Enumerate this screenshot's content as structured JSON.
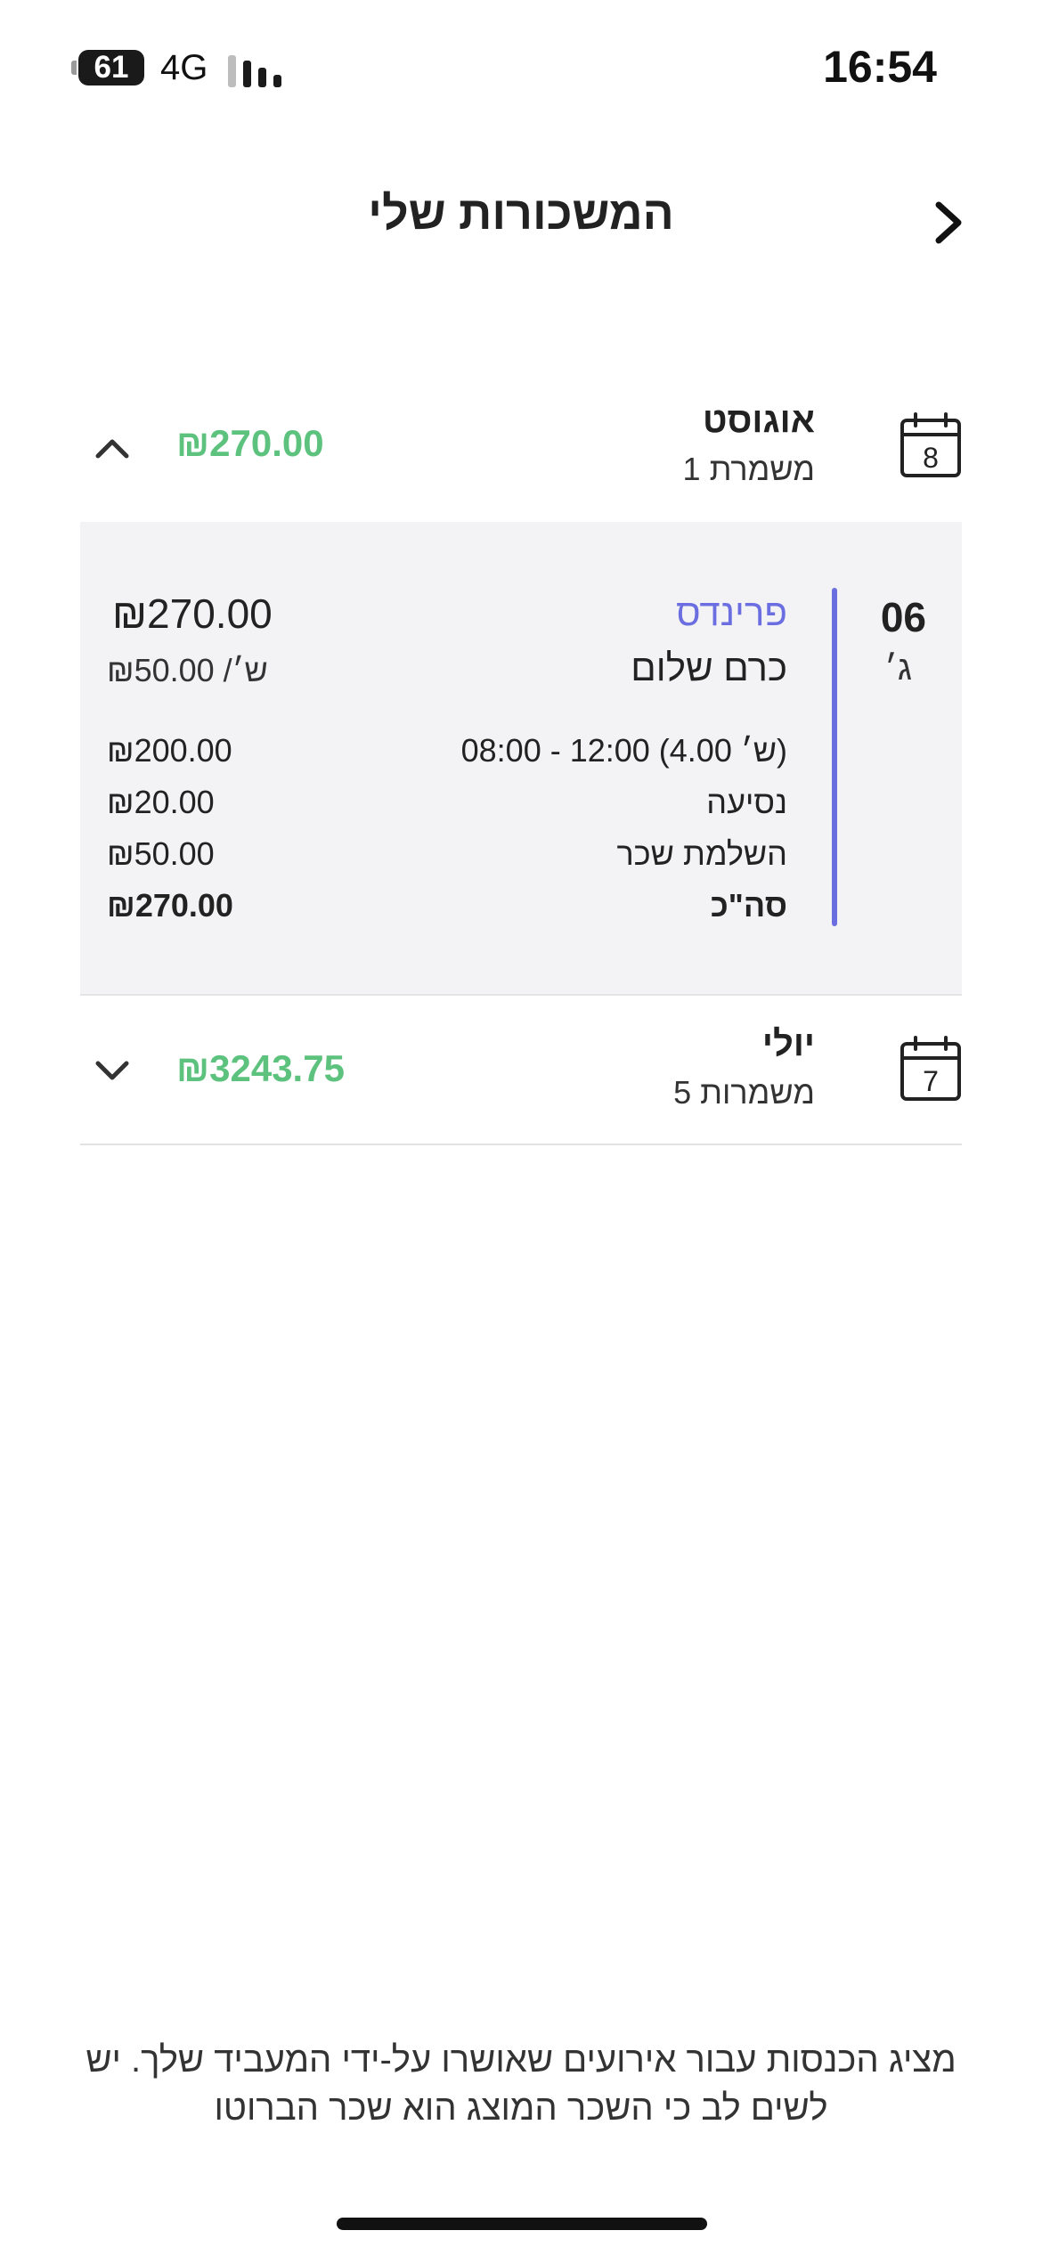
{
  "status_bar": {
    "battery": "61",
    "network": "4G",
    "time": "16:54"
  },
  "header": {
    "title": "המשכורות שלי"
  },
  "months": [
    {
      "name": "אוגוסט",
      "shifts": "1 משמרת",
      "total": "₪270.00",
      "calendar_day": "8",
      "expanded": true
    },
    {
      "name": "יולי",
      "shifts": "5 משמרות",
      "total": "₪3243.75",
      "calendar_day": "7",
      "expanded": false
    }
  ],
  "shift": {
    "day_number": "06",
    "day_name": "ג׳",
    "client": "פרינדס",
    "location": "כרם שלום",
    "amount": "₪270.00",
    "rate": "₪50.00 /ש׳",
    "lines": [
      {
        "label": "08:00 - 12:00 (4.00 ש׳)",
        "value": "₪200.00"
      },
      {
        "label": "נסיעה",
        "value": "₪20.00"
      },
      {
        "label": "השלמת שכר",
        "value": "₪50.00"
      },
      {
        "label": "סה\"כ",
        "value": "₪270.00"
      }
    ]
  },
  "footer": {
    "note": "מציג הכנסות עבור אירועים שאושרו על-ידי המעביד שלך. יש לשים לב כי השכר המוצג הוא שכר הברוטו"
  },
  "colors": {
    "accent": "#6b6ee0",
    "money": "#5ec27f",
    "panel": "#f3f3f5"
  }
}
